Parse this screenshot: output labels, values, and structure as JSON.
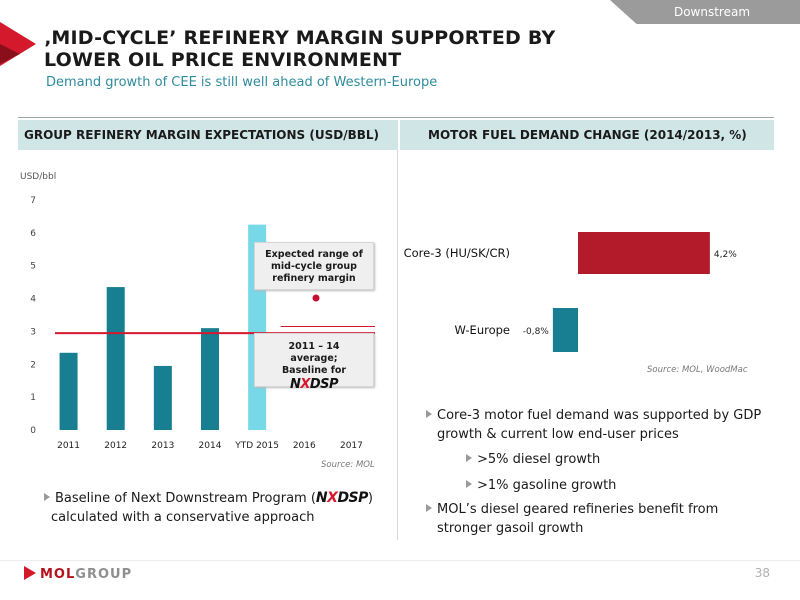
{
  "section_tag": "Downstream",
  "title_line1": "‚MID-CYCLE’ REFINERY MARGIN SUPPORTED BY",
  "title_line2": "LOWER OIL PRICE ENVIRONMENT",
  "subtitle": "Demand growth of CEE is still well ahead of Western-Europe",
  "left_header": "GROUP REFINERY MARGIN EXPECTATIONS (USD/BBL)",
  "right_header": "MOTOR FUEL DEMAND CHANGE (2014/2013, %)",
  "unit_label": "USD/bbl",
  "left_source": "Source: MOL",
  "right_source": "Source: MOL, WoodMac",
  "callout_top": "Expected range of mid-cycle group refinery margin",
  "callout_bottom": "2011 – 14 average; Baseline for",
  "nxdsp": {
    "n": "N",
    "x": "X",
    "dsp": "DSP"
  },
  "left_bullet_pre": "Baseline of Next Downstream Program  (",
  "left_bullet_post": ")",
  "left_bullet_line2": "calculated with a conservative approach",
  "right_bullets": [
    {
      "line1": "Core-3 motor fuel demand was supported by GDP",
      "line2": "growth & current low end-user prices"
    },
    {
      "line1": ">5% diesel growth"
    },
    {
      "line1": ">1% gasoline growth"
    },
    {
      "line1": "MOL’s diesel geared refineries benefit from",
      "line2": "stronger gasoil growth"
    }
  ],
  "logo": {
    "mol": "MOL",
    "group": "GROUP"
  },
  "page_number": "38",
  "colors": {
    "teal": "#187f92",
    "light_teal": "#77d8e8",
    "red": "#b31b2a",
    "baseline": "#d4192c"
  },
  "chart_data": [
    {
      "type": "bar",
      "categories": [
        "2011",
        "2012",
        "2013",
        "2014",
        "YTD 2015",
        "2016",
        "2017"
      ],
      "values": [
        2.35,
        4.35,
        1.95,
        3.1,
        6.25,
        null,
        null
      ],
      "ylabel": "USD/bbl",
      "ylim": [
        0,
        7
      ],
      "yticks": [
        0,
        1,
        2,
        3,
        4,
        5,
        6,
        7
      ],
      "baseline_average": 2.95,
      "expected_range": [
        2.95,
        3.15
      ],
      "grid": false
    },
    {
      "type": "bar",
      "orientation": "horizontal",
      "categories": [
        "Core-3 (HU/SK/CR)",
        "W-Europe"
      ],
      "values": [
        4.2,
        -0.8
      ],
      "value_labels": [
        "4,2%",
        "-0,8%"
      ],
      "grid": false
    }
  ]
}
